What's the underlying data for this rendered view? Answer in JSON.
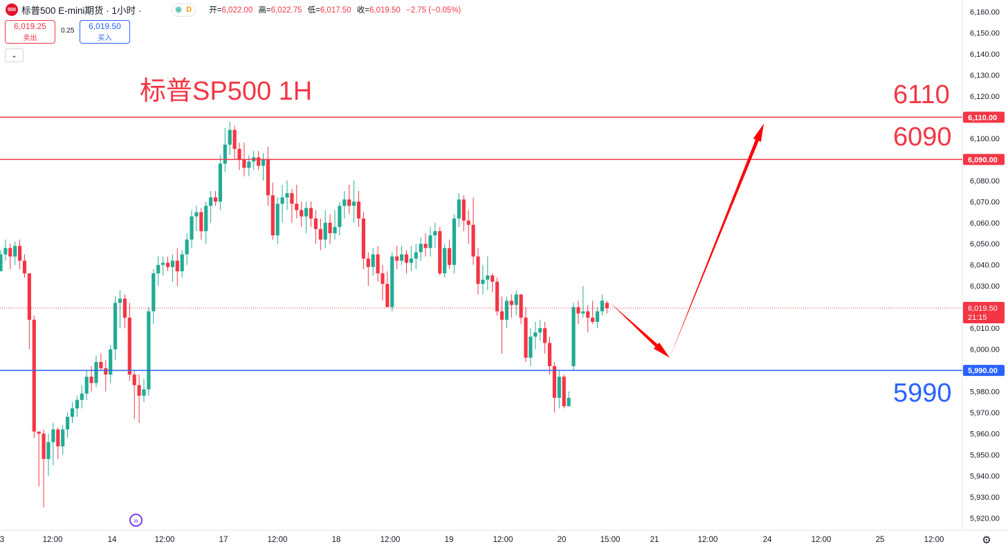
{
  "header": {
    "symbol_title": "标普500 E-mini期货 · 1小时 ·",
    "logo_text": "500",
    "status_letter": "D",
    "ohlc": {
      "open_label": "开=",
      "open": "6,022.00",
      "high_label": "高=",
      "high": "6,022.75",
      "low_label": "低=",
      "low": "6,017.50",
      "close_label": "收=",
      "close": "6,019.50",
      "change": "−2.75 (−0.05%)"
    }
  },
  "trade": {
    "sell_price": "6,019.25",
    "sell_label": "卖出",
    "spread": "0.25",
    "buy_price": "6,019.50",
    "buy_label": "买入"
  },
  "annotations": {
    "title": "标普SP500 1H",
    "level_6110": "6110",
    "level_6090": "6090",
    "level_5990": "5990"
  },
  "colors": {
    "up": "#22ab94",
    "down": "#f23645",
    "resistance": "#f23645",
    "support": "#2962ff",
    "arrow": "#ff0000"
  },
  "chart_data": {
    "type": "candlestick",
    "ylim": [
      5914,
      6164
    ],
    "y_ticks": [
      5920,
      5930,
      5940,
      5950,
      5960,
      5970,
      5980,
      5990,
      6000,
      6010,
      6020,
      6030,
      6040,
      6050,
      6060,
      6070,
      6080,
      6090,
      6100,
      6110,
      6120,
      6130,
      6140,
      6150,
      6160
    ],
    "x_labels": [
      "3",
      "12:00",
      "14",
      "12:00",
      "17",
      "12:00",
      "18",
      "12:00",
      "19",
      "12:00",
      "20",
      "15:00",
      "21",
      "12:00",
      "24",
      "12:00",
      "25",
      "12:00"
    ],
    "price_line": {
      "value": 6019.5,
      "label": "6,019.50",
      "countdown": "21:15"
    },
    "horizontal_lines": [
      {
        "value": 6110,
        "label": "6,110.00",
        "color": "#f23645"
      },
      {
        "value": 6090,
        "label": "6,090.00",
        "color": "#f23645"
      },
      {
        "value": 5990,
        "label": "5,990.00",
        "color": "#2962ff"
      }
    ],
    "arrow_path_prices": [
      6022,
      5996,
      6107
    ],
    "candles": [
      [
        6037,
        6047,
        6037,
        6045
      ],
      [
        6045,
        6052,
        6042,
        6048
      ],
      [
        6048,
        6050,
        6038,
        6044
      ],
      [
        6044,
        6051,
        6040,
        6049
      ],
      [
        6049,
        6052,
        6038,
        6042
      ],
      [
        6042,
        6045,
        6034,
        6036
      ],
      [
        6036,
        6034,
        6000,
        6014
      ],
      [
        6014,
        6016,
        5958,
        5961
      ],
      [
        5961,
        5961,
        5935,
        5960
      ],
      [
        5960,
        5962,
        5925,
        5948
      ],
      [
        5948,
        5960,
        5940,
        5956
      ],
      [
        5956,
        5965,
        5945,
        5962
      ],
      [
        5962,
        5963,
        5948,
        5954
      ],
      [
        5954,
        5964,
        5950,
        5962
      ],
      [
        5962,
        5970,
        5958,
        5968
      ],
      [
        5968,
        5975,
        5965,
        5972
      ],
      [
        5972,
        5978,
        5968,
        5976
      ],
      [
        5976,
        5983,
        5972,
        5979
      ],
      [
        5979,
        5990,
        5976,
        5987
      ],
      [
        5987,
        5992,
        5980,
        5984
      ],
      [
        5984,
        5997,
        5982,
        5994
      ],
      [
        5994,
        5998,
        5990,
        5991
      ],
      [
        5991,
        5995,
        5980,
        5988
      ],
      [
        5988,
        6002,
        5984,
        6000
      ],
      [
        6000,
        6025,
        5995,
        6022
      ],
      [
        6022,
        6028,
        6010,
        6024
      ],
      [
        6024,
        6026,
        6010,
        6015
      ],
      [
        6015,
        6022,
        5985,
        5988
      ],
      [
        5988,
        5990,
        5967,
        5983
      ],
      [
        5983,
        5988,
        5965,
        5978
      ],
      [
        5978,
        5986,
        5975,
        5981
      ],
      [
        5981,
        6020,
        5978,
        6018
      ],
      [
        6018,
        6038,
        6012,
        6036
      ],
      [
        6036,
        6044,
        6030,
        6040
      ],
      [
        6040,
        6044,
        6035,
        6041
      ],
      [
        6041,
        6044,
        6037,
        6039
      ],
      [
        6039,
        6045,
        6032,
        6042
      ],
      [
        6042,
        6048,
        6030,
        6037
      ],
      [
        6037,
        6047,
        6034,
        6045
      ],
      [
        6045,
        6055,
        6040,
        6052
      ],
      [
        6052,
        6066,
        6048,
        6063
      ],
      [
        6063,
        6068,
        6056,
        6065
      ],
      [
        6065,
        6067,
        6052,
        6056
      ],
      [
        6056,
        6070,
        6050,
        6068
      ],
      [
        6068,
        6075,
        6060,
        6072
      ],
      [
        6072,
        6075,
        6068,
        6070
      ],
      [
        6070,
        6092,
        6066,
        6088
      ],
      [
        6088,
        6105,
        6084,
        6097
      ],
      [
        6097,
        6108,
        6092,
        6104
      ],
      [
        6104,
        6106,
        6090,
        6095
      ],
      [
        6095,
        6098,
        6085,
        6090
      ],
      [
        6090,
        6098,
        6082,
        6086
      ],
      [
        6086,
        6092,
        6082,
        6089
      ],
      [
        6089,
        6094,
        6085,
        6091
      ],
      [
        6091,
        6094,
        6085,
        6087
      ],
      [
        6087,
        6093,
        6080,
        6090
      ],
      [
        6090,
        6096,
        6068,
        6073
      ],
      [
        6073,
        6079,
        6052,
        6054
      ],
      [
        6054,
        6072,
        6050,
        6069
      ],
      [
        6069,
        6078,
        6060,
        6072
      ],
      [
        6072,
        6080,
        6066,
        6074
      ],
      [
        6074,
        6076,
        6060,
        6069
      ],
      [
        6069,
        6078,
        6062,
        6066
      ],
      [
        6066,
        6070,
        6058,
        6063
      ],
      [
        6063,
        6070,
        6055,
        6067
      ],
      [
        6067,
        6070,
        6058,
        6062
      ],
      [
        6062,
        6066,
        6050,
        6057
      ],
      [
        6057,
        6062,
        6047,
        6052
      ],
      [
        6052,
        6066,
        6048,
        6060
      ],
      [
        6060,
        6064,
        6050,
        6055
      ],
      [
        6055,
        6066,
        6052,
        6058
      ],
      [
        6058,
        6070,
        6054,
        6068
      ],
      [
        6068,
        6075,
        6062,
        6071
      ],
      [
        6071,
        6078,
        6064,
        6068
      ],
      [
        6068,
        6080,
        6060,
        6070
      ],
      [
        6070,
        6075,
        6058,
        6062
      ],
      [
        6062,
        6065,
        6038,
        6043
      ],
      [
        6043,
        6046,
        6030,
        6039
      ],
      [
        6039,
        6048,
        6035,
        6045
      ],
      [
        6045,
        6049,
        6032,
        6036
      ],
      [
        6036,
        6040,
        6023,
        6031
      ],
      [
        6031,
        6037,
        6020,
        6020
      ],
      [
        6020,
        6046,
        6018,
        6044
      ],
      [
        6044,
        6049,
        6038,
        6042
      ],
      [
        6042,
        6049,
        6040,
        6045
      ],
      [
        6045,
        6047,
        6036,
        6041
      ],
      [
        6041,
        6049,
        6037,
        6043
      ],
      [
        6043,
        6050,
        6038,
        6046
      ],
      [
        6046,
        6053,
        6042,
        6050
      ],
      [
        6050,
        6055,
        6044,
        6048
      ],
      [
        6048,
        6058,
        6044,
        6054
      ],
      [
        6054,
        6060,
        6048,
        6056
      ],
      [
        6056,
        6058,
        6035,
        6036
      ],
      [
        6036,
        6050,
        6034,
        6048
      ],
      [
        6048,
        6052,
        6038,
        6040
      ],
      [
        6040,
        6064,
        6036,
        6062
      ],
      [
        6062,
        6074,
        6058,
        6071
      ],
      [
        6071,
        6073,
        6056,
        6061
      ],
      [
        6061,
        6066,
        6050,
        6059
      ],
      [
        6059,
        6072,
        6040,
        6044
      ],
      [
        6044,
        6048,
        6026,
        6031
      ],
      [
        6031,
        6040,
        6026,
        6033
      ],
      [
        6033,
        6044,
        6028,
        6035
      ],
      [
        6035,
        6036,
        6027,
        6032
      ],
      [
        6032,
        6034,
        6016,
        6018
      ],
      [
        6018,
        6025,
        5998,
        6014
      ],
      [
        6014,
        6025,
        6010,
        6023
      ],
      [
        6023,
        6026,
        6015,
        6021
      ],
      [
        6021,
        6028,
        6016,
        6026
      ],
      [
        6026,
        6026,
        6012,
        6015
      ],
      [
        6015,
        6020,
        5994,
        5996
      ],
      [
        5996,
        6010,
        5992,
        6006
      ],
      [
        6006,
        6013,
        6000,
        6008
      ],
      [
        6008,
        6014,
        6004,
        6010
      ],
      [
        6010,
        6013,
        5998,
        6003
      ],
      [
        6003,
        6006,
        5988,
        5992
      ],
      [
        5992,
        5994,
        5970,
        5977
      ],
      [
        5977,
        5990,
        5972,
        5987
      ],
      [
        5987,
        5988,
        5972,
        5973
      ],
      [
        5973,
        5980,
        5973,
        5977
      ],
      [
        5992,
        6022,
        5990,
        6020
      ],
      [
        6020,
        6023,
        6012,
        6017
      ],
      [
        6017,
        6030,
        6015,
        6018
      ],
      [
        6018,
        6021,
        6008,
        6015
      ],
      [
        6015,
        6023,
        6012,
        6013
      ],
      [
        6013,
        6020,
        6010,
        6018
      ],
      [
        6018,
        6026,
        6016,
        6023
      ],
      [
        6022,
        6023,
        6017,
        6019.5
      ]
    ]
  }
}
